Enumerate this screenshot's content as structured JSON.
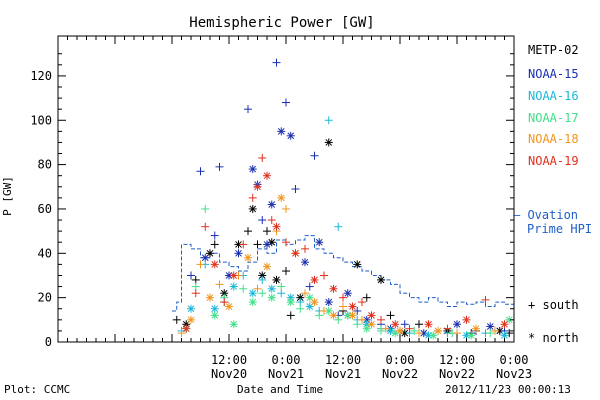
{
  "chart_data": {
    "type": "scatter",
    "title": "Hemispheric Power [GW]",
    "ylabel": "P [GW]",
    "xlabel": "Date and Time",
    "x_range_hours": [
      -24,
      72
    ],
    "ylim": [
      0,
      138
    ],
    "y_ticks": [
      0,
      20,
      40,
      60,
      80,
      100,
      120
    ],
    "x_ticks": [
      {
        "hour": 12,
        "time": "12:00",
        "date": "Nov20"
      },
      {
        "hour": 24,
        "time": "0:00",
        "date": "Nov21"
      },
      {
        "hour": 36,
        "time": "12:00",
        "date": "Nov21"
      },
      {
        "hour": 48,
        "time": "0:00",
        "date": "Nov22"
      },
      {
        "hour": 60,
        "time": "12:00",
        "date": "Nov22"
      },
      {
        "hour": 72,
        "time": "0:00",
        "date": "Nov23"
      }
    ],
    "series": [
      {
        "name": "METP-02",
        "color": "#000000",
        "points": [
          [
            1,
            10,
            "s"
          ],
          [
            3,
            8,
            "n"
          ],
          [
            5,
            28,
            "s"
          ],
          [
            8,
            40,
            "n"
          ],
          [
            9,
            44,
            "s"
          ],
          [
            11,
            22,
            "n"
          ],
          [
            14,
            44,
            "n"
          ],
          [
            16,
            50,
            "s"
          ],
          [
            17,
            60,
            "n"
          ],
          [
            18,
            44,
            "s"
          ],
          [
            19,
            30,
            "n"
          ],
          [
            20,
            50,
            "s"
          ],
          [
            21,
            45,
            "n"
          ],
          [
            22,
            28,
            "n"
          ],
          [
            24,
            32,
            "s"
          ],
          [
            25,
            12,
            "s"
          ],
          [
            27,
            20,
            "n"
          ],
          [
            33,
            90,
            "n"
          ],
          [
            36,
            14,
            "s"
          ],
          [
            39,
            35,
            "n"
          ],
          [
            41,
            20,
            "s"
          ],
          [
            44,
            28,
            "n"
          ],
          [
            46,
            12,
            "s"
          ],
          [
            49,
            4,
            "n"
          ],
          [
            52,
            8,
            "s"
          ],
          [
            58,
            5,
            "n"
          ],
          [
            63,
            4,
            "s"
          ],
          [
            69,
            5,
            "n"
          ],
          [
            71,
            4,
            "s"
          ]
        ]
      },
      {
        "name": "NOAA-15",
        "color": "#1a2fb0",
        "points": [
          [
            4,
            30,
            "s"
          ],
          [
            6,
            77,
            "s"
          ],
          [
            7,
            38,
            "n"
          ],
          [
            9,
            48,
            "s"
          ],
          [
            10,
            79,
            "s"
          ],
          [
            12,
            30,
            "n"
          ],
          [
            14,
            40,
            "n"
          ],
          [
            16,
            105,
            "s"
          ],
          [
            17,
            78,
            "n"
          ],
          [
            18,
            71,
            "n"
          ],
          [
            19,
            55,
            "s"
          ],
          [
            20,
            44,
            "n"
          ],
          [
            21,
            62,
            "n"
          ],
          [
            22,
            126,
            "s"
          ],
          [
            23,
            95,
            "n"
          ],
          [
            24,
            108,
            "s"
          ],
          [
            25,
            93,
            "n"
          ],
          [
            26,
            69,
            "s"
          ],
          [
            28,
            36,
            "n"
          ],
          [
            29,
            25,
            "s"
          ],
          [
            30,
            84,
            "s"
          ],
          [
            31,
            45,
            "n"
          ],
          [
            33,
            18,
            "n"
          ],
          [
            35,
            12,
            "s"
          ],
          [
            37,
            22,
            "n"
          ],
          [
            39,
            14,
            "s"
          ],
          [
            41,
            10,
            "n"
          ],
          [
            44,
            8,
            "s"
          ],
          [
            46,
            6,
            "n"
          ],
          [
            49,
            8,
            "s"
          ],
          [
            53,
            4,
            "n"
          ],
          [
            56,
            5,
            "s"
          ],
          [
            60,
            8,
            "n"
          ],
          [
            64,
            5,
            "s"
          ],
          [
            67,
            7,
            "n"
          ],
          [
            70,
            5,
            "s"
          ]
        ]
      },
      {
        "name": "NOAA-16",
        "color": "#1ab8d8",
        "points": [
          [
            2,
            5,
            "s"
          ],
          [
            4,
            15,
            "n"
          ],
          [
            7,
            35,
            "s"
          ],
          [
            9,
            15,
            "n"
          ],
          [
            11,
            18,
            "s"
          ],
          [
            13,
            25,
            "n"
          ],
          [
            15,
            30,
            "s"
          ],
          [
            17,
            22,
            "n"
          ],
          [
            19,
            28,
            "s"
          ],
          [
            21,
            24,
            "n"
          ],
          [
            23,
            22,
            "s"
          ],
          [
            25,
            20,
            "n"
          ],
          [
            27,
            18,
            "s"
          ],
          [
            29,
            16,
            "n"
          ],
          [
            31,
            14,
            "s"
          ],
          [
            33,
            100,
            "s"
          ],
          [
            35,
            52,
            "s"
          ],
          [
            37,
            12,
            "n"
          ],
          [
            39,
            10,
            "s"
          ],
          [
            41,
            8,
            "n"
          ],
          [
            44,
            6,
            "s"
          ],
          [
            46,
            5,
            "n"
          ],
          [
            50,
            4,
            "s"
          ],
          [
            54,
            3,
            "n"
          ],
          [
            58,
            4,
            "s"
          ],
          [
            62,
            3,
            "n"
          ],
          [
            66,
            4,
            "s"
          ],
          [
            70,
            3,
            "n"
          ]
        ]
      },
      {
        "name": "NOAA-17",
        "color": "#3fe08a",
        "points": [
          [
            3,
            6,
            "n"
          ],
          [
            5,
            25,
            "s"
          ],
          [
            7,
            60,
            "s"
          ],
          [
            9,
            12,
            "n"
          ],
          [
            11,
            20,
            "s"
          ],
          [
            13,
            8,
            "n"
          ],
          [
            15,
            24,
            "s"
          ],
          [
            17,
            18,
            "n"
          ],
          [
            19,
            22,
            "s"
          ],
          [
            21,
            20,
            "n"
          ],
          [
            23,
            25,
            "s"
          ],
          [
            25,
            18,
            "n"
          ],
          [
            27,
            15,
            "s"
          ],
          [
            29,
            20,
            "n"
          ],
          [
            31,
            12,
            "s"
          ],
          [
            33,
            14,
            "n"
          ],
          [
            35,
            10,
            "s"
          ],
          [
            37,
            12,
            "n"
          ],
          [
            39,
            8,
            "s"
          ],
          [
            41,
            6,
            "n"
          ],
          [
            44,
            5,
            "s"
          ],
          [
            47,
            4,
            "n"
          ],
          [
            51,
            5,
            "s"
          ],
          [
            55,
            3,
            "n"
          ],
          [
            59,
            4,
            "s"
          ],
          [
            63,
            3,
            "n"
          ],
          [
            67,
            4,
            "s"
          ],
          [
            71,
            10,
            "n"
          ]
        ]
      },
      {
        "name": "NOAA-18",
        "color": "#f0961e",
        "points": [
          [
            2,
            4,
            "s"
          ],
          [
            4,
            10,
            "n"
          ],
          [
            6,
            35,
            "s"
          ],
          [
            8,
            20,
            "n"
          ],
          [
            10,
            26,
            "s"
          ],
          [
            12,
            16,
            "n"
          ],
          [
            14,
            30,
            "s"
          ],
          [
            16,
            38,
            "n"
          ],
          [
            18,
            24,
            "s"
          ],
          [
            20,
            34,
            "n"
          ],
          [
            22,
            50,
            "s"
          ],
          [
            23,
            65,
            "n"
          ],
          [
            24,
            60,
            "s"
          ],
          [
            26,
            40,
            "n"
          ],
          [
            28,
            22,
            "s"
          ],
          [
            30,
            18,
            "n"
          ],
          [
            32,
            14,
            "s"
          ],
          [
            34,
            12,
            "n"
          ],
          [
            36,
            16,
            "s"
          ],
          [
            38,
            12,
            "n"
          ],
          [
            40,
            10,
            "s"
          ],
          [
            42,
            8,
            "n"
          ],
          [
            45,
            6,
            "s"
          ],
          [
            48,
            5,
            "n"
          ],
          [
            52,
            4,
            "s"
          ],
          [
            56,
            5,
            "n"
          ],
          [
            60,
            4,
            "s"
          ],
          [
            64,
            6,
            "n"
          ],
          [
            68,
            5,
            "s"
          ]
        ]
      },
      {
        "name": "NOAA-19",
        "color": "#e0301e",
        "points": [
          [
            3,
            6,
            "n"
          ],
          [
            5,
            22,
            "s"
          ],
          [
            7,
            52,
            "s"
          ],
          [
            9,
            35,
            "n"
          ],
          [
            11,
            18,
            "s"
          ],
          [
            13,
            30,
            "n"
          ],
          [
            15,
            44,
            "s"
          ],
          [
            17,
            65,
            "s"
          ],
          [
            18,
            70,
            "n"
          ],
          [
            19,
            83,
            "s"
          ],
          [
            20,
            75,
            "n"
          ],
          [
            21,
            55,
            "s"
          ],
          [
            22,
            52,
            "n"
          ],
          [
            24,
            45,
            "s"
          ],
          [
            26,
            40,
            "n"
          ],
          [
            28,
            42,
            "s"
          ],
          [
            30,
            28,
            "n"
          ],
          [
            32,
            30,
            "s"
          ],
          [
            34,
            24,
            "n"
          ],
          [
            36,
            20,
            "s"
          ],
          [
            38,
            16,
            "n"
          ],
          [
            40,
            18,
            "s"
          ],
          [
            42,
            12,
            "n"
          ],
          [
            44,
            10,
            "s"
          ],
          [
            47,
            8,
            "n"
          ],
          [
            50,
            6,
            "s"
          ],
          [
            54,
            8,
            "n"
          ],
          [
            58,
            6,
            "s"
          ],
          [
            62,
            10,
            "n"
          ],
          [
            66,
            19,
            "s"
          ],
          [
            70,
            8,
            "n"
          ]
        ]
      }
    ],
    "ovation_line": {
      "color": "#1f5fc8",
      "legend_lines": [
        "Ovation",
        "Prime HPI"
      ],
      "values": [
        [
          0,
          14
        ],
        [
          1,
          18
        ],
        [
          2,
          44
        ],
        [
          4,
          42
        ],
        [
          6,
          38
        ],
        [
          8,
          40
        ],
        [
          10,
          36
        ],
        [
          12,
          34
        ],
        [
          14,
          32
        ],
        [
          16,
          36
        ],
        [
          18,
          42
        ],
        [
          20,
          40
        ],
        [
          22,
          46
        ],
        [
          24,
          44
        ],
        [
          26,
          46
        ],
        [
          28,
          48
        ],
        [
          30,
          42
        ],
        [
          32,
          40
        ],
        [
          34,
          38
        ],
        [
          36,
          36
        ],
        [
          38,
          34
        ],
        [
          40,
          32
        ],
        [
          42,
          30
        ],
        [
          44,
          28
        ],
        [
          46,
          26
        ],
        [
          48,
          22
        ],
        [
          50,
          20
        ],
        [
          52,
          18
        ],
        [
          54,
          20
        ],
        [
          56,
          18
        ],
        [
          58,
          16
        ],
        [
          60,
          18
        ],
        [
          62,
          17
        ],
        [
          64,
          18
        ],
        [
          66,
          16
        ],
        [
          68,
          18
        ],
        [
          70,
          17
        ],
        [
          72,
          16
        ]
      ]
    },
    "symbol_key": {
      "south": "south",
      "north": "north",
      "south_glyph": "+",
      "north_glyph": "*"
    },
    "legend_position": "right"
  },
  "footer": {
    "left": "Plot: CCMC",
    "center": "Date and Time",
    "right": "2012/11/23 00:00:13"
  }
}
